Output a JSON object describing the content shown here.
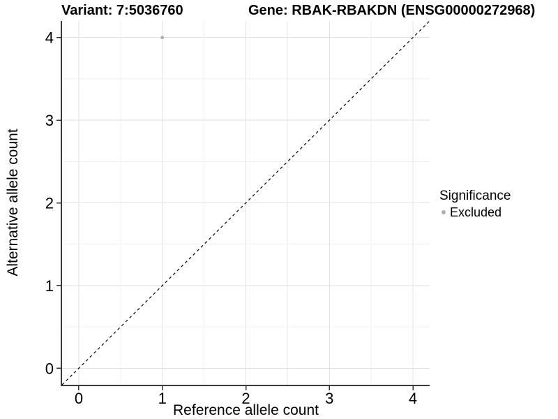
{
  "figure": {
    "title_variant": "Variant: 7:5036760",
    "title_gene": "Gene: RBAK-RBAKDN (ENSG00000272968)"
  },
  "axes": {
    "x_title": "Reference allele count",
    "y_title": "Alternative allele count"
  },
  "legend": {
    "title": "Significance",
    "items": [
      {
        "label": "Excluded",
        "color": "#b0b0b0"
      }
    ]
  },
  "chart_data": {
    "type": "scatter",
    "title": "Variant: 7:5036760   Gene: RBAK-RBAKDN (ENSG00000272968)",
    "xlabel": "Reference allele count",
    "ylabel": "Alternative allele count",
    "xlim": [
      -0.2,
      4.2
    ],
    "ylim": [
      -0.2,
      4.2
    ],
    "x_ticks": [
      0,
      1,
      2,
      3,
      4
    ],
    "y_ticks": [
      0,
      1,
      2,
      3,
      4
    ],
    "x_minor_ticks": [
      0.5,
      1.5,
      2.5,
      3.5
    ],
    "y_minor_ticks": [
      0.5,
      1.5,
      2.5,
      3.5
    ],
    "grid": "major+minor",
    "legend_position": "right",
    "series": [
      {
        "name": "Excluded",
        "marker_color": "#b0b0b0",
        "points": [
          [
            1,
            4
          ]
        ]
      }
    ],
    "reference_line": {
      "slope": 1,
      "intercept": 0,
      "style": "dashed",
      "color": "#000000"
    }
  },
  "colors": {
    "background": "#ffffff",
    "grid_major": "#e2e2e2",
    "grid_minor": "#f0f0f0",
    "axis_line": "#3a3a3a",
    "tick": "#333333",
    "text": "#000000",
    "point": "#b0b0b0"
  }
}
